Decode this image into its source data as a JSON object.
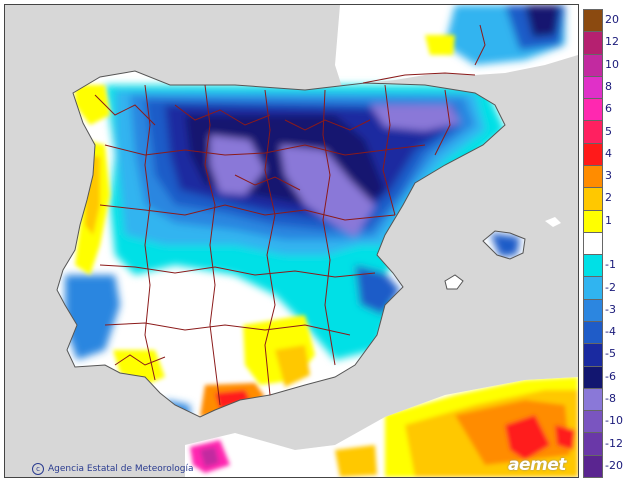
{
  "map": {
    "credit": "Agencia Estatal de Meteorología",
    "logo_text": "aemet",
    "colors": {
      "sea": "#d7d7d7",
      "land": "#ffffff",
      "border": "#8b1a1a"
    }
  },
  "legend": {
    "items": [
      {
        "label": "20",
        "color": "#8b4a10"
      },
      {
        "label": "12",
        "color": "#b52070"
      },
      {
        "label": "10",
        "color": "#c22aa0"
      },
      {
        "label": "8",
        "color": "#e030c8"
      },
      {
        "label": "6",
        "color": "#ff28b0"
      },
      {
        "label": "5",
        "color": "#ff2060"
      },
      {
        "label": "4",
        "color": "#ff1a1a"
      },
      {
        "label": "3",
        "color": "#ff8c00"
      },
      {
        "label": "2",
        "color": "#ffc800"
      },
      {
        "label": "1",
        "color": "#ffff00"
      },
      {
        "label": "",
        "color": "#ffffff"
      },
      {
        "label": "-1",
        "color": "#00e0e6"
      },
      {
        "label": "-2",
        "color": "#30b4f0"
      },
      {
        "label": "-3",
        "color": "#2c86e0"
      },
      {
        "label": "-4",
        "color": "#1f5cc8"
      },
      {
        "label": "-5",
        "color": "#1a2aa0"
      },
      {
        "label": "-6",
        "color": "#121670"
      },
      {
        "label": "-8",
        "color": "#8a78d8"
      },
      {
        "label": "-10",
        "color": "#7a55c0"
      },
      {
        "label": "-12",
        "color": "#6a38a8"
      },
      {
        "label": "-20",
        "color": "#5a2590"
      }
    ]
  }
}
